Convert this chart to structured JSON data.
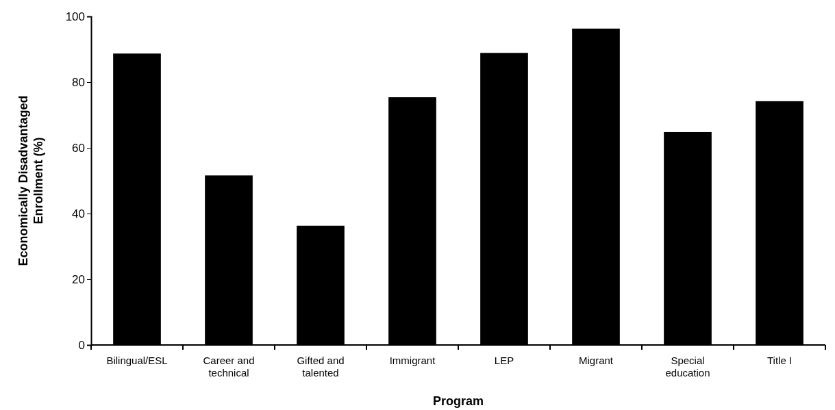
{
  "chart_data": {
    "type": "bar",
    "xlabel": "Program",
    "ylabel": "Economically Disadvantaged Enrollment (%)",
    "categories": [
      "Bilingual/ESL",
      "Career and technical",
      "Gifted and talented",
      "Immigrant",
      "LEP",
      "Migrant",
      "Special education",
      "Title I"
    ],
    "values": [
      88.7,
      51.6,
      36.3,
      75.4,
      88.9,
      96.3,
      64.8,
      74.2
    ],
    "color": "#000000",
    "ylim": [
      0,
      100
    ],
    "yticks": [
      0,
      20,
      40,
      60,
      80,
      100
    ],
    "grid": false
  }
}
